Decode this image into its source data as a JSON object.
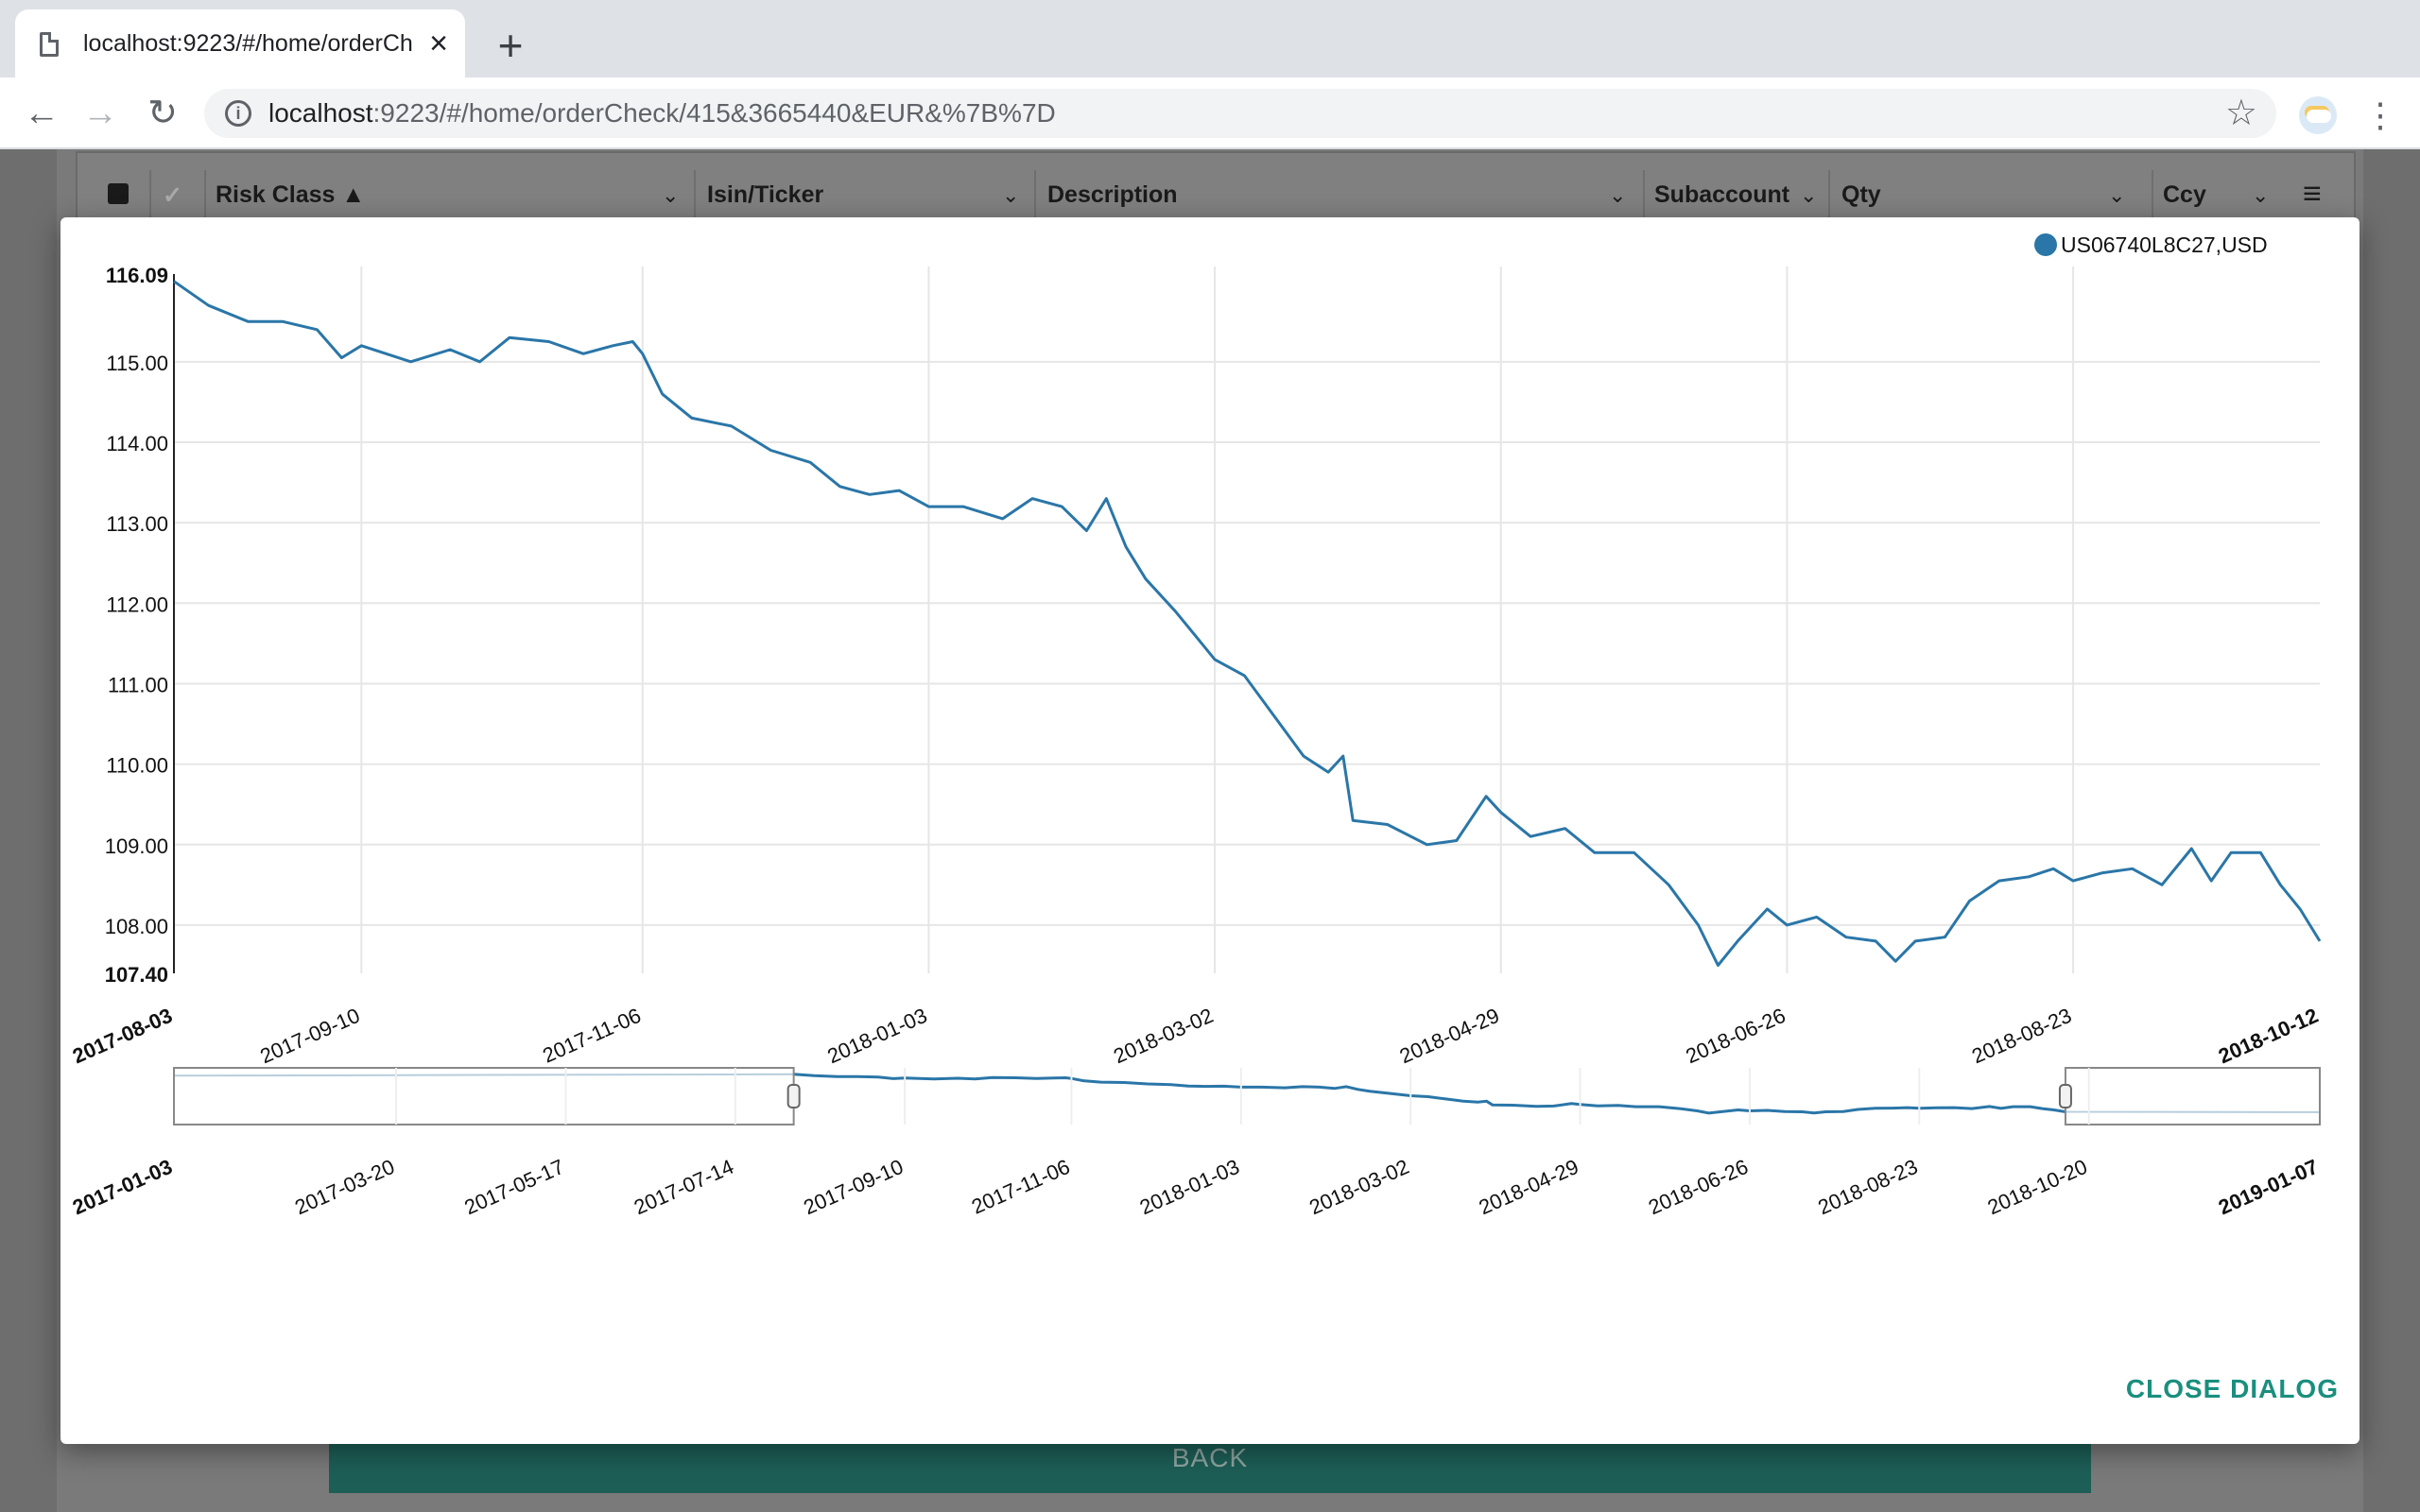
{
  "browser": {
    "tab_title": "localhost:9223/#/home/orderCheck/415&3665440&EUR&%7B%7D",
    "url_host": "localhost",
    "url_rest": ":9223/#/home/orderCheck/415&3665440&EUR&%7B%7D",
    "new_tab_icon": "plus-icon",
    "close_tab_icon": "close-icon"
  },
  "grid": {
    "columns": [
      {
        "label": "Risk Class",
        "sort": "asc"
      },
      {
        "label": "Isin/Ticker"
      },
      {
        "label": "Description"
      },
      {
        "label": "Subaccount"
      },
      {
        "label": "Qty"
      },
      {
        "label": "Ccy"
      }
    ]
  },
  "page": {
    "back_label": "BACK"
  },
  "dialog": {
    "close_label": "CLOSE DIALOG"
  },
  "colors": {
    "line": "#2a76a8",
    "accent": "#1a8f7e"
  },
  "chart_data": {
    "type": "line",
    "legend": "US06740L8C27,USD",
    "legend_position": "top-right",
    "y_ticks": [
      "116.09",
      "115.00",
      "114.00",
      "113.00",
      "112.00",
      "111.00",
      "110.00",
      "109.00",
      "108.00",
      "107.40"
    ],
    "ylim": [
      107.4,
      116.09
    ],
    "xlim": [
      "2017-08-03",
      "2018-10-12"
    ],
    "x_ticks": [
      "2017-08-03",
      "2017-09-10",
      "2017-11-06",
      "2018-01-03",
      "2018-03-02",
      "2018-04-29",
      "2018-06-26",
      "2018-08-23",
      "2018-10-12"
    ],
    "grid": true,
    "series": [
      {
        "values": [
          [
            "2017-08-03",
            116.0
          ],
          [
            "2017-08-10",
            115.7
          ],
          [
            "2017-08-18",
            115.5
          ],
          [
            "2017-08-25",
            115.5
          ],
          [
            "2017-09-01",
            115.4
          ],
          [
            "2017-09-06",
            115.05
          ],
          [
            "2017-09-10",
            115.2
          ],
          [
            "2017-09-20",
            115.0
          ],
          [
            "2017-09-28",
            115.15
          ],
          [
            "2017-10-04",
            115.0
          ],
          [
            "2017-10-10",
            115.3
          ],
          [
            "2017-10-18",
            115.25
          ],
          [
            "2017-10-25",
            115.1
          ],
          [
            "2017-10-31",
            115.2
          ],
          [
            "2017-11-04",
            115.25
          ],
          [
            "2017-11-06",
            115.1
          ],
          [
            "2017-11-10",
            114.6
          ],
          [
            "2017-11-16",
            114.3
          ],
          [
            "2017-11-24",
            114.2
          ],
          [
            "2017-12-02",
            113.9
          ],
          [
            "2017-12-10",
            113.75
          ],
          [
            "2017-12-16",
            113.45
          ],
          [
            "2017-12-22",
            113.35
          ],
          [
            "2017-12-28",
            113.4
          ],
          [
            "2018-01-03",
            113.2
          ],
          [
            "2018-01-10",
            113.2
          ],
          [
            "2018-01-18",
            113.05
          ],
          [
            "2018-01-24",
            113.3
          ],
          [
            "2018-01-30",
            113.2
          ],
          [
            "2018-02-04",
            112.9
          ],
          [
            "2018-02-08",
            113.3
          ],
          [
            "2018-02-12",
            112.7
          ],
          [
            "2018-02-16",
            112.3
          ],
          [
            "2018-02-22",
            111.9
          ],
          [
            "2018-03-02",
            111.3
          ],
          [
            "2018-03-08",
            111.1
          ],
          [
            "2018-03-14",
            110.6
          ],
          [
            "2018-03-20",
            110.1
          ],
          [
            "2018-03-25",
            109.9
          ],
          [
            "2018-03-28",
            110.1
          ],
          [
            "2018-03-30",
            109.3
          ],
          [
            "2018-04-06",
            109.25
          ],
          [
            "2018-04-14",
            109.0
          ],
          [
            "2018-04-20",
            109.05
          ],
          [
            "2018-04-26",
            109.6
          ],
          [
            "2018-04-29",
            109.4
          ],
          [
            "2018-05-05",
            109.1
          ],
          [
            "2018-05-12",
            109.2
          ],
          [
            "2018-05-18",
            108.9
          ],
          [
            "2018-05-26",
            108.9
          ],
          [
            "2018-06-02",
            108.5
          ],
          [
            "2018-06-08",
            108.0
          ],
          [
            "2018-06-12",
            107.5
          ],
          [
            "2018-06-16",
            107.8
          ],
          [
            "2018-06-22",
            108.2
          ],
          [
            "2018-06-26",
            108.0
          ],
          [
            "2018-07-02",
            108.1
          ],
          [
            "2018-07-08",
            107.85
          ],
          [
            "2018-07-14",
            107.8
          ],
          [
            "2018-07-18",
            107.55
          ],
          [
            "2018-07-22",
            107.8
          ],
          [
            "2018-07-28",
            107.85
          ],
          [
            "2018-08-02",
            108.3
          ],
          [
            "2018-08-08",
            108.55
          ],
          [
            "2018-08-14",
            108.6
          ],
          [
            "2018-08-19",
            108.7
          ],
          [
            "2018-08-23",
            108.55
          ],
          [
            "2018-08-29",
            108.65
          ],
          [
            "2018-09-04",
            108.7
          ],
          [
            "2018-09-10",
            108.5
          ],
          [
            "2018-09-16",
            108.95
          ],
          [
            "2018-09-20",
            108.55
          ],
          [
            "2018-09-24",
            108.9
          ],
          [
            "2018-09-30",
            108.9
          ],
          [
            "2018-10-04",
            108.5
          ],
          [
            "2018-10-08",
            108.2
          ],
          [
            "2018-10-12",
            107.8
          ]
        ]
      }
    ],
    "navigator": {
      "x_ticks": [
        "2017-01-03",
        "2017-03-20",
        "2017-05-17",
        "2017-07-14",
        "2017-09-10",
        "2017-11-06",
        "2018-01-03",
        "2018-03-02",
        "2018-04-29",
        "2018-06-26",
        "2018-08-23",
        "2018-10-20",
        "2019-01-07"
      ],
      "xlim": [
        "2017-01-03",
        "2019-01-07"
      ],
      "selected_range": [
        "2017-08-03",
        "2018-10-12"
      ]
    }
  }
}
